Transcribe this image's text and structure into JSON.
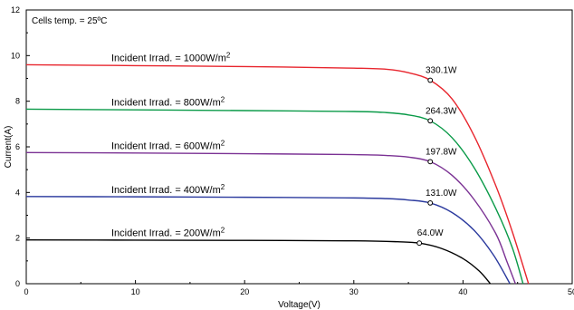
{
  "chart_data": {
    "type": "line",
    "xlabel": "Voltage(V)",
    "ylabel": "Current(A)",
    "xlim": [
      0,
      50
    ],
    "ylim": [
      0,
      12
    ],
    "x_ticks": [
      0,
      10,
      20,
      30,
      40,
      50
    ],
    "y_ticks": [
      0,
      2,
      4,
      6,
      8,
      10,
      12
    ],
    "grid": false,
    "annotation": "Cells temp. = 25ºC",
    "series": [
      {
        "label": "Incident Irrad. = 1000W/m",
        "label_sup": "2",
        "color": "#e8262e",
        "isc": 9.6,
        "voc": 46.0,
        "mpp_v": 37.0,
        "mpp_i": 8.92,
        "mpp_label": "330.1W",
        "points": [
          [
            0,
            9.6
          ],
          [
            10,
            9.56
          ],
          [
            20,
            9.52
          ],
          [
            30,
            9.45
          ],
          [
            33,
            9.4
          ],
          [
            35,
            9.25
          ],
          [
            37,
            8.92
          ],
          [
            39,
            8.1
          ],
          [
            41,
            6.5
          ],
          [
            43,
            4.3
          ],
          [
            44.5,
            2.3
          ],
          [
            46.0,
            0
          ]
        ]
      },
      {
        "label": "Incident Irrad. = 800W/m",
        "label_sup": "2",
        "color": "#0a9a48",
        "isc": 7.65,
        "voc": 45.5,
        "mpp_v": 37.0,
        "mpp_i": 7.14,
        "mpp_label": "264.3W",
        "points": [
          [
            0,
            7.65
          ],
          [
            10,
            7.62
          ],
          [
            20,
            7.59
          ],
          [
            30,
            7.55
          ],
          [
            33,
            7.5
          ],
          [
            35,
            7.4
          ],
          [
            37,
            7.14
          ],
          [
            39,
            6.4
          ],
          [
            41,
            5.1
          ],
          [
            43,
            3.3
          ],
          [
            44.5,
            1.6
          ],
          [
            45.5,
            0
          ]
        ]
      },
      {
        "label": "Incident Irrad. = 600W/m",
        "label_sup": "2",
        "color": "#7b3294",
        "isc": 5.75,
        "voc": 44.8,
        "mpp_v": 37.0,
        "mpp_i": 5.35,
        "mpp_label": "197.8W",
        "points": [
          [
            0,
            5.75
          ],
          [
            10,
            5.73
          ],
          [
            20,
            5.7
          ],
          [
            30,
            5.66
          ],
          [
            33,
            5.62
          ],
          [
            35,
            5.55
          ],
          [
            37,
            5.35
          ],
          [
            39,
            4.75
          ],
          [
            41,
            3.7
          ],
          [
            43,
            2.2
          ],
          [
            44.0,
            1.0
          ],
          [
            44.8,
            0
          ]
        ]
      },
      {
        "label": "Incident Irrad. = 400W/m",
        "label_sup": "2",
        "color": "#2b3a9e",
        "isc": 3.82,
        "voc": 44.3,
        "mpp_v": 37.0,
        "mpp_i": 3.54,
        "mpp_label": "131.0W",
        "points": [
          [
            0,
            3.82
          ],
          [
            10,
            3.81
          ],
          [
            20,
            3.79
          ],
          [
            30,
            3.76
          ],
          [
            33,
            3.73
          ],
          [
            35,
            3.67
          ],
          [
            37,
            3.54
          ],
          [
            39,
            3.12
          ],
          [
            41,
            2.35
          ],
          [
            42.8,
            1.25
          ],
          [
            44.3,
            0
          ]
        ]
      },
      {
        "label": "Incident Irrad. = 200W/m",
        "label_sup": "2",
        "color": "#000000",
        "isc": 1.92,
        "voc": 42.5,
        "mpp_v": 36.0,
        "mpp_i": 1.78,
        "mpp_label": "64.0W",
        "points": [
          [
            0,
            1.92
          ],
          [
            10,
            1.91
          ],
          [
            20,
            1.9
          ],
          [
            30,
            1.88
          ],
          [
            34,
            1.84
          ],
          [
            36,
            1.78
          ],
          [
            38,
            1.55
          ],
          [
            40,
            1.1
          ],
          [
            41.5,
            0.55
          ],
          [
            42.5,
            0
          ]
        ]
      }
    ]
  }
}
